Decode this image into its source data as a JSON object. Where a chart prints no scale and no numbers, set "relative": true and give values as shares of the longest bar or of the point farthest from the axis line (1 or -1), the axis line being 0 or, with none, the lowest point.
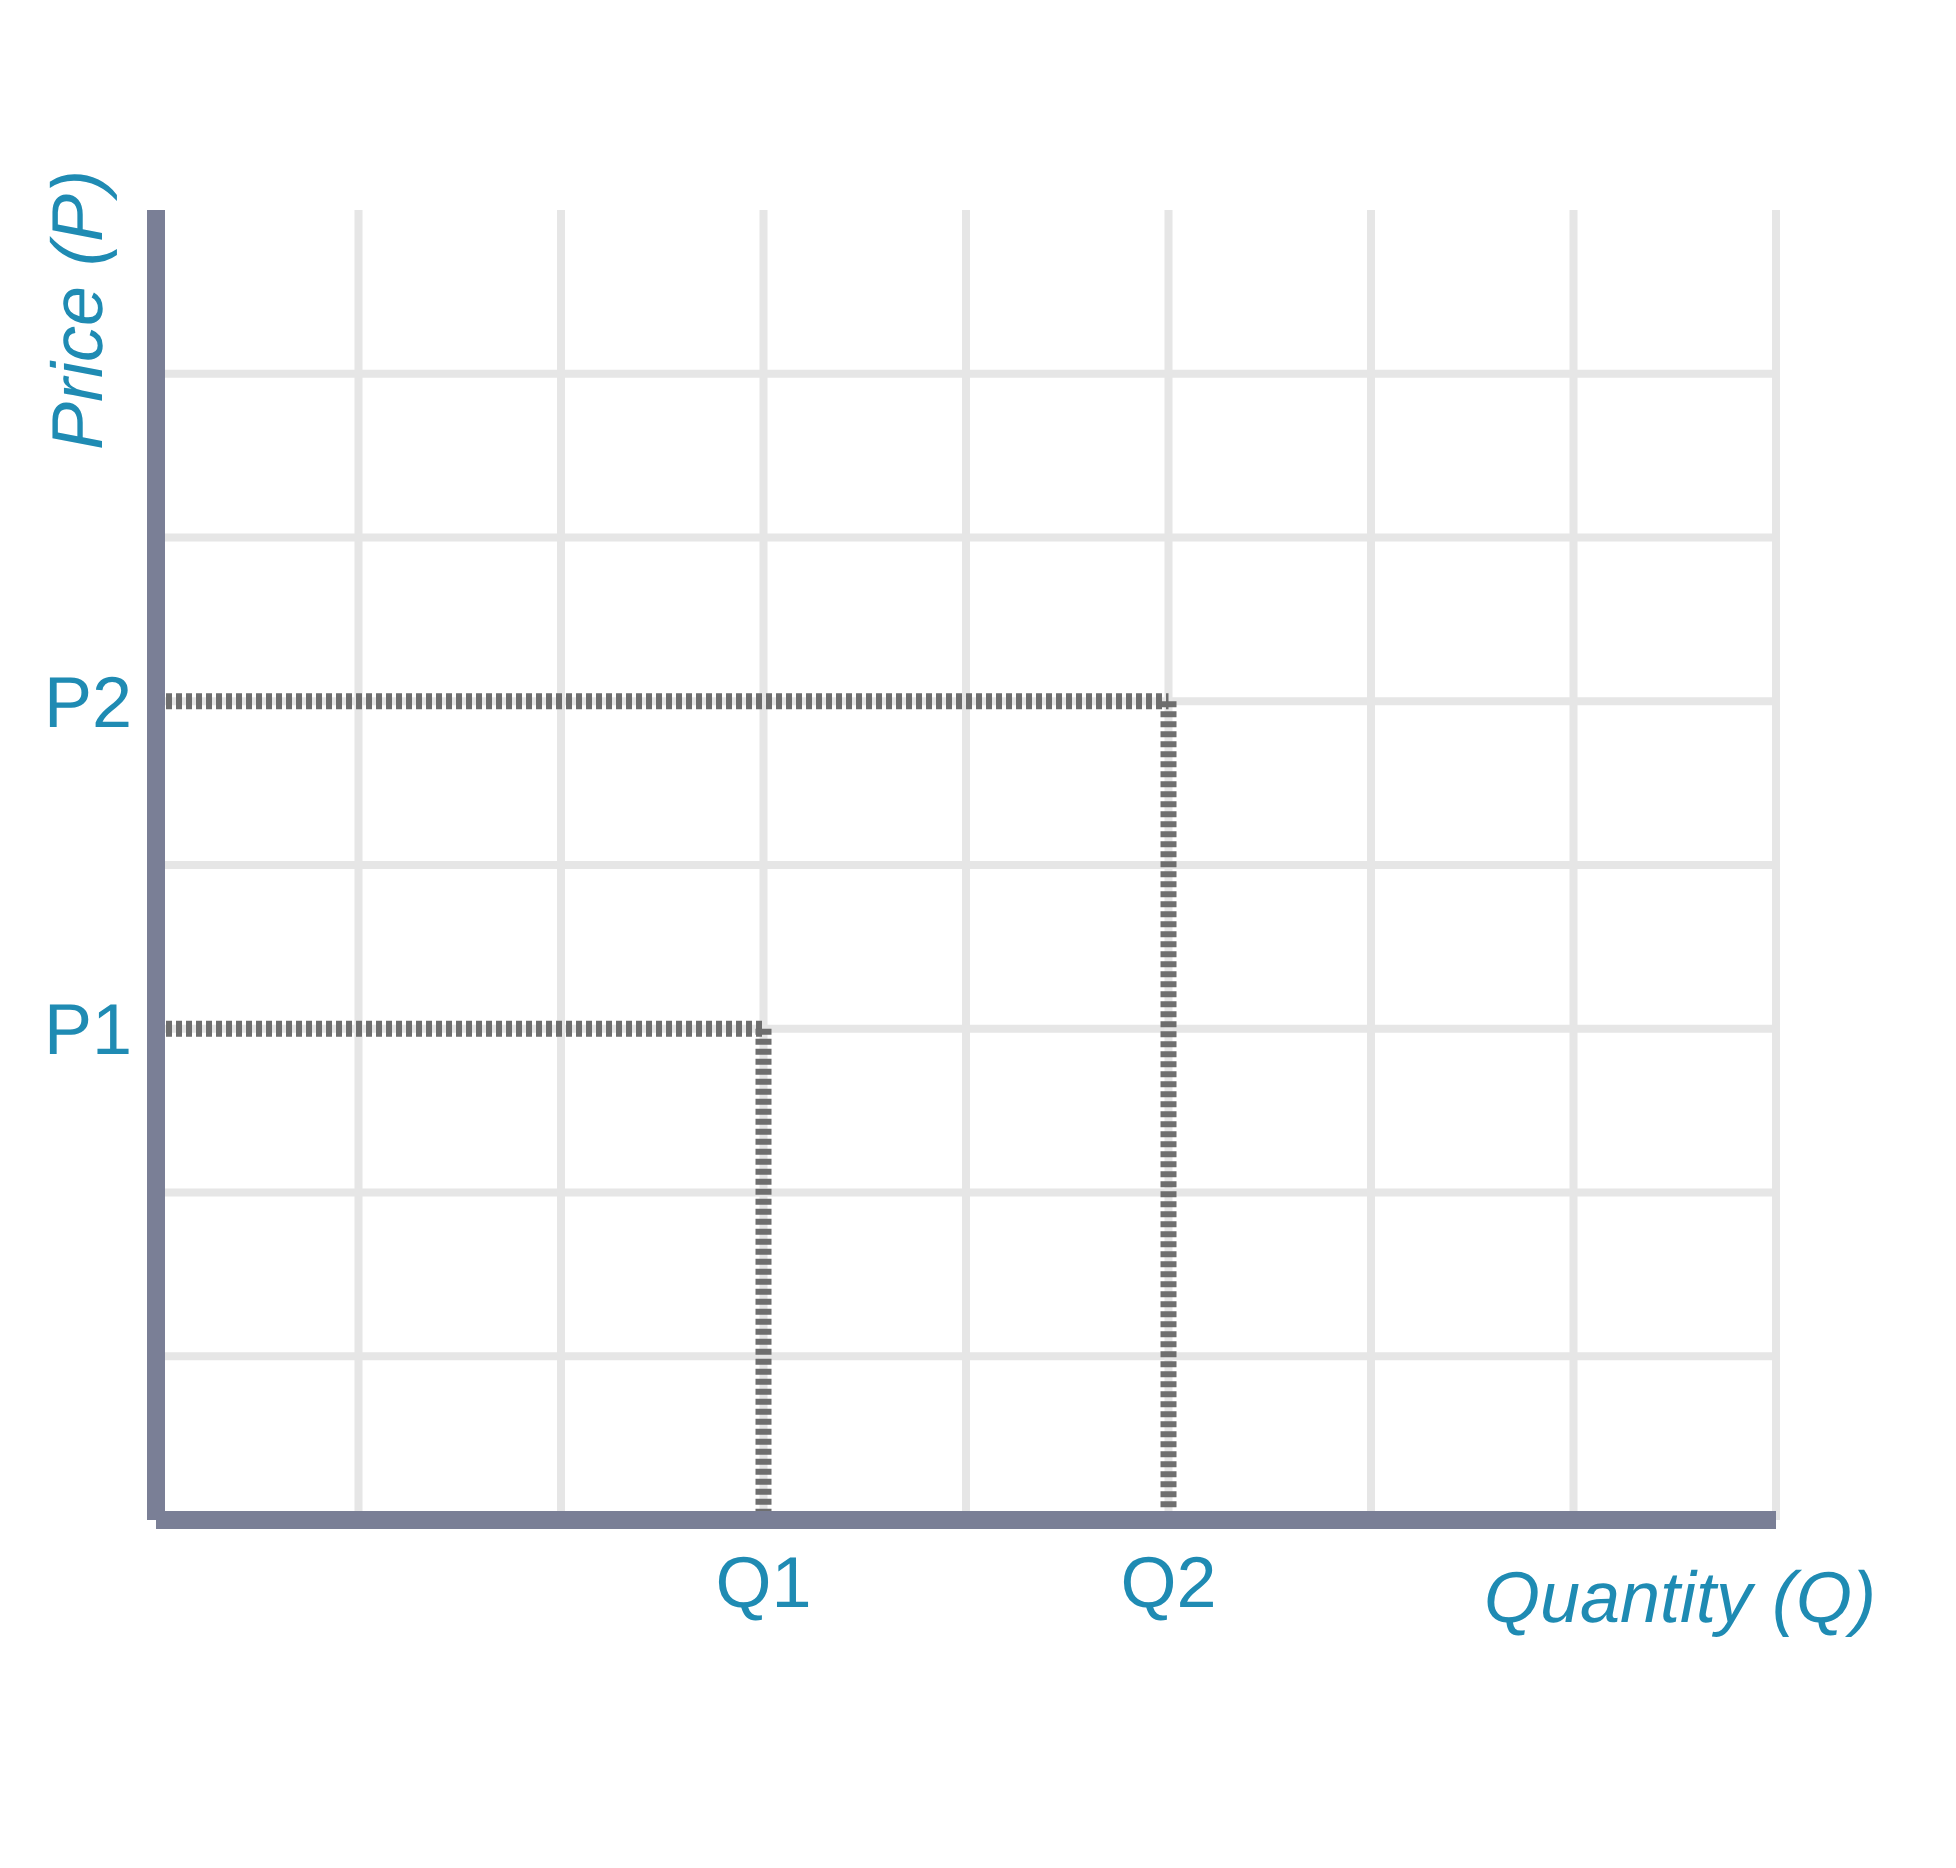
{
  "chart_data": {
    "type": "line",
    "xlabel": "Quantity (Q)",
    "ylabel": "Price (P)",
    "relative": true,
    "categories": [
      null,
      null,
      null,
      "Q1",
      null,
      "Q2",
      null,
      null,
      null
    ],
    "annotations": [
      "P1",
      "P2"
    ],
    "grid": true,
    "marker": "none",
    "line_style": "dotted",
    "series": [
      {
        "color": "#6e6e6e",
        "values": [
          0.6,
          0.6,
          0.6,
          0.6,
          null,
          null,
          null,
          null,
          null
        ]
      },
      {
        "color": "#6e6e6e",
        "x": [
          "Q1",
          "Q1"
        ],
        "values": [
          0.6,
          0
        ]
      },
      {
        "color": "#6e6e6e",
        "values": [
          1,
          1,
          1,
          1,
          1,
          1,
          null,
          null,
          null
        ]
      },
      {
        "color": "#6e6e6e",
        "x": [
          "Q2",
          "Q2"
        ],
        "values": [
          1,
          0
        ]
      }
    ]
  }
}
